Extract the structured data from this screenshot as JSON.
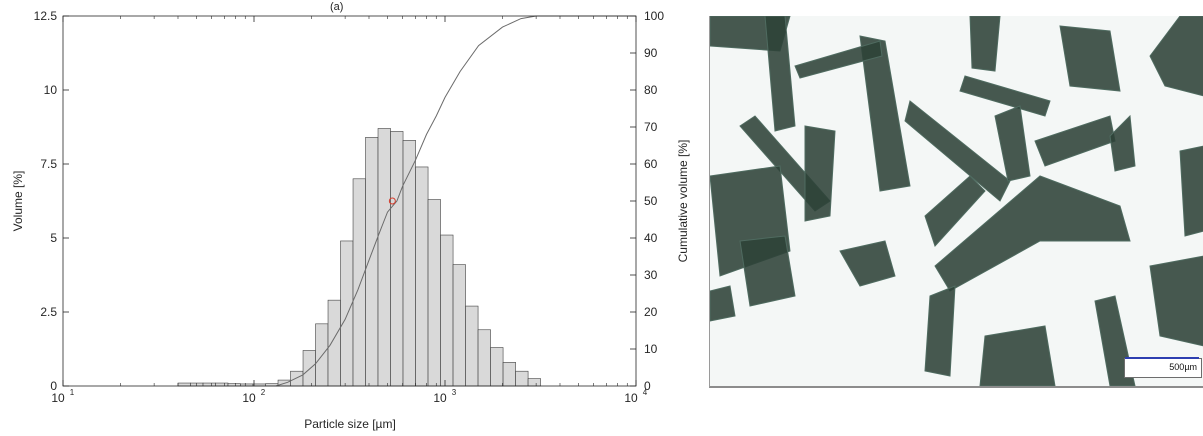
{
  "panel_label": "(a)",
  "chart_data": {
    "type": "bar",
    "xlabel": "Particle size [µm]",
    "ylabel": "Volume [%]",
    "y2label": "Cumulative volume [%]",
    "x_scale": "log",
    "xlim": [
      10,
      10000
    ],
    "ylim": [
      0,
      12.5
    ],
    "y2lim": [
      0,
      100
    ],
    "x_ticks": [
      {
        "base": "10",
        "exp": "1"
      },
      {
        "base": "10",
        "exp": "2"
      },
      {
        "base": "10",
        "exp": "3"
      },
      {
        "base": "10",
        "exp": "4"
      }
    ],
    "y_ticks": [
      "0",
      "2.5",
      "5",
      "7.5",
      "10",
      "12.5"
    ],
    "y2_ticks": [
      "0",
      "10",
      "20",
      "30",
      "40",
      "50",
      "60",
      "70",
      "80",
      "90",
      "100"
    ],
    "bar_color": "#d9d9d9",
    "bar_edge_color": "#404040",
    "curve_color": "#6b6b6b",
    "marker_color": "#d43a2a",
    "histogram": {
      "bin_edges": [
        40,
        46.5,
        54.1,
        62.9,
        73.1,
        85.0,
        98.8,
        114.9,
        133.6,
        155.3,
        180.6,
        210.0,
        244.1,
        283.8,
        330.0,
        383.6,
        446.0,
        518.6,
        603.0,
        701.1,
        815.2,
        947.8,
        1102.0,
        1281.3,
        1489.7,
        1732.1,
        2013.9,
        2341.6,
        2722.6,
        3165.6
      ],
      "values": [
        0.1,
        0.1,
        0.1,
        0.1,
        0.08,
        0.07,
        0.07,
        0.08,
        0.2,
        0.5,
        1.2,
        2.1,
        2.9,
        4.9,
        7.0,
        8.4,
        8.7,
        8.6,
        8.3,
        7.4,
        6.3,
        5.1,
        4.1,
        2.7,
        1.9,
        1.3,
        0.8,
        0.5,
        0.25
      ]
    },
    "cumulative": {
      "x": [
        130,
        150,
        180,
        210,
        250,
        300,
        350,
        400,
        450,
        500,
        560,
        600,
        700,
        800,
        900,
        1000,
        1200,
        1500,
        2000,
        2500,
        3000,
        3500
      ],
      "y": [
        0,
        1,
        3,
        6,
        11,
        18,
        26,
        34,
        41,
        47,
        50,
        54,
        61,
        68,
        73,
        78,
        85,
        92,
        97,
        99.3,
        100,
        100
      ]
    },
    "median_marker": {
      "x": 530,
      "y": 50
    }
  },
  "micrograph": {
    "scale_bar_label": "500µm",
    "scale_bar_color": "#2d3fb0",
    "fiber_color": "#2d4238"
  }
}
